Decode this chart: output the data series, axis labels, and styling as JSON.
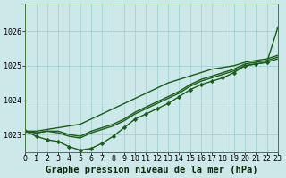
{
  "background_color": "#cce8e8",
  "grid_color": "#99cccc",
  "line_color": "#1a5c1a",
  "xlabel": "Graphe pression niveau de la mer (hPa)",
  "xlim": [
    0,
    23
  ],
  "ylim": [
    1022.5,
    1026.8
  ],
  "yticks": [
    1023,
    1024,
    1025,
    1026
  ],
  "xticks": [
    0,
    1,
    2,
    3,
    4,
    5,
    6,
    7,
    8,
    9,
    10,
    11,
    12,
    13,
    14,
    15,
    16,
    17,
    18,
    19,
    20,
    21,
    22,
    23
  ],
  "lines": [
    {
      "y": [
        1023.1,
        1023.05,
        1023.1,
        1023.05,
        1022.95,
        1022.9,
        1023.05,
        1023.15,
        1023.25,
        1023.4,
        1023.6,
        1023.75,
        1023.9,
        1024.05,
        1024.2,
        1024.4,
        1024.55,
        1024.65,
        1024.75,
        1024.85,
        1025.0,
        1025.05,
        1025.1,
        1025.2
      ],
      "marker": false
    },
    {
      "y": [
        1023.1,
        1023.05,
        1023.1,
        1023.1,
        1023.0,
        1022.95,
        1023.1,
        1023.2,
        1023.3,
        1023.45,
        1023.65,
        1023.8,
        1023.95,
        1024.1,
        1024.25,
        1024.45,
        1024.6,
        1024.7,
        1024.8,
        1024.9,
        1025.05,
        1025.1,
        1025.15,
        1025.25
      ],
      "marker": false
    },
    {
      "y": [
        1023.1,
        1023.1,
        1023.15,
        1023.2,
        1023.25,
        1023.3,
        1023.45,
        1023.6,
        1023.75,
        1023.9,
        1024.05,
        1024.2,
        1024.35,
        1024.5,
        1024.6,
        1024.7,
        1024.8,
        1024.9,
        1024.95,
        1025.0,
        1025.1,
        1025.15,
        1025.2,
        1025.3
      ],
      "marker": false
    },
    {
      "y": [
        1023.1,
        1022.95,
        1022.85,
        1022.8,
        1022.65,
        1022.55,
        1022.6,
        1022.75,
        1022.95,
        1023.2,
        1023.45,
        1023.6,
        1023.75,
        1023.9,
        1024.1,
        1024.3,
        1024.45,
        1024.55,
        1024.65,
        1024.8,
        1025.0,
        1025.05,
        1025.1,
        1026.1
      ],
      "marker": true
    }
  ],
  "title_fontsize": 7.5,
  "tick_fontsize": 6.0,
  "line_width": 1.0,
  "marker_size": 2.2
}
